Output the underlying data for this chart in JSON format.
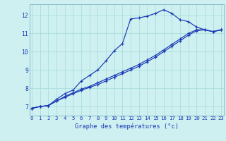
{
  "title": "Graphe des températures (°c)",
  "bg_color": "#cef0f0",
  "grid_color": "#aadddd",
  "line_color": "#1a3ab5",
  "x_labels": [
    "0",
    "1",
    "2",
    "3",
    "4",
    "5",
    "6",
    "7",
    "8",
    "9",
    "10",
    "11",
    "12",
    "13",
    "14",
    "15",
    "16",
    "17",
    "18",
    "19",
    "20",
    "21",
    "22",
    "23"
  ],
  "ylim": [
    6.5,
    12.6
  ],
  "xlim": [
    -0.3,
    23.3
  ],
  "yticks": [
    7,
    8,
    9,
    10,
    11,
    12
  ],
  "line1": [
    6.9,
    7.0,
    7.05,
    7.4,
    7.7,
    7.9,
    8.4,
    8.7,
    9.0,
    9.5,
    10.05,
    10.45,
    11.8,
    11.85,
    11.95,
    12.1,
    12.3,
    12.1,
    11.75,
    11.65,
    11.35,
    11.2,
    11.1,
    11.2
  ],
  "line2": [
    6.9,
    7.0,
    7.05,
    7.3,
    7.55,
    7.75,
    7.95,
    8.1,
    8.3,
    8.5,
    8.7,
    8.9,
    9.1,
    9.3,
    9.55,
    9.8,
    10.1,
    10.4,
    10.7,
    11.0,
    11.2,
    11.2,
    11.1,
    11.2
  ],
  "line3": [
    6.9,
    7.0,
    7.05,
    7.3,
    7.5,
    7.7,
    7.88,
    8.05,
    8.2,
    8.4,
    8.6,
    8.8,
    9.0,
    9.2,
    9.45,
    9.7,
    10.0,
    10.3,
    10.6,
    10.9,
    11.15,
    11.2,
    11.1,
    11.2
  ]
}
